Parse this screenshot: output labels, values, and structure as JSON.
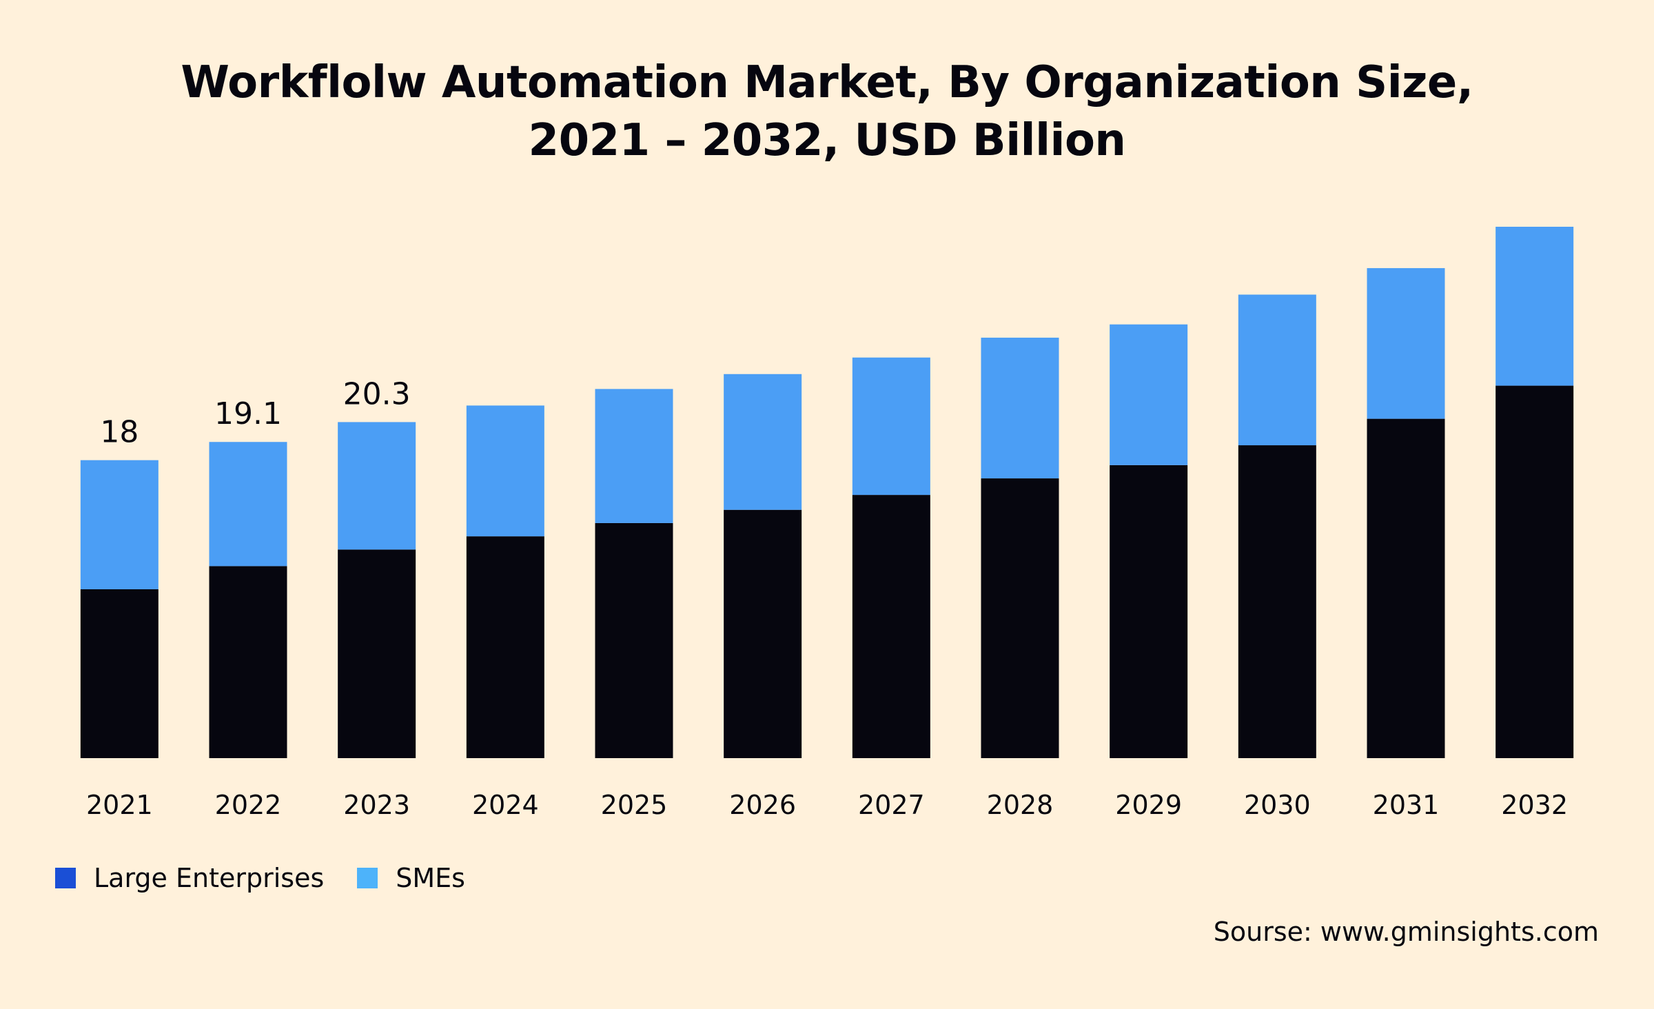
{
  "title": {
    "line1": "Workflolw Automation Market, By Organization Size,",
    "line2": "2021 – 2032, USD Billion"
  },
  "legend": {
    "items": [
      {
        "label": "Large Enterprises",
        "color": "#1a4fd6"
      },
      {
        "label": "SMEs",
        "color": "#4db3fa"
      }
    ]
  },
  "source": "Sourse: www.gminsights.com",
  "colors": {
    "background": "#fff1db",
    "large_enterprises_bar": "#06060f",
    "smes_bar": "#4b9ef5"
  },
  "chart_data": {
    "type": "bar",
    "stacked": true,
    "categories": [
      "2021",
      "2022",
      "2023",
      "2024",
      "2025",
      "2026",
      "2027",
      "2028",
      "2029",
      "2030",
      "2031",
      "2032"
    ],
    "series": [
      {
        "name": "Large Enterprises",
        "values": [
          10.2,
          11.6,
          12.6,
          13.4,
          14.2,
          15.0,
          15.9,
          16.9,
          17.7,
          18.9,
          20.5,
          22.5
        ]
      },
      {
        "name": "SMEs",
        "values": [
          7.8,
          7.5,
          7.7,
          7.9,
          8.1,
          8.2,
          8.3,
          8.5,
          8.5,
          9.1,
          9.1,
          9.6
        ]
      }
    ],
    "data_labels": {
      "2021": "18",
      "2022": "19.1",
      "2023": "20.3"
    },
    "ylim": [
      0,
      32.1
    ],
    "grid": false,
    "legend_position": "bottom-left"
  }
}
